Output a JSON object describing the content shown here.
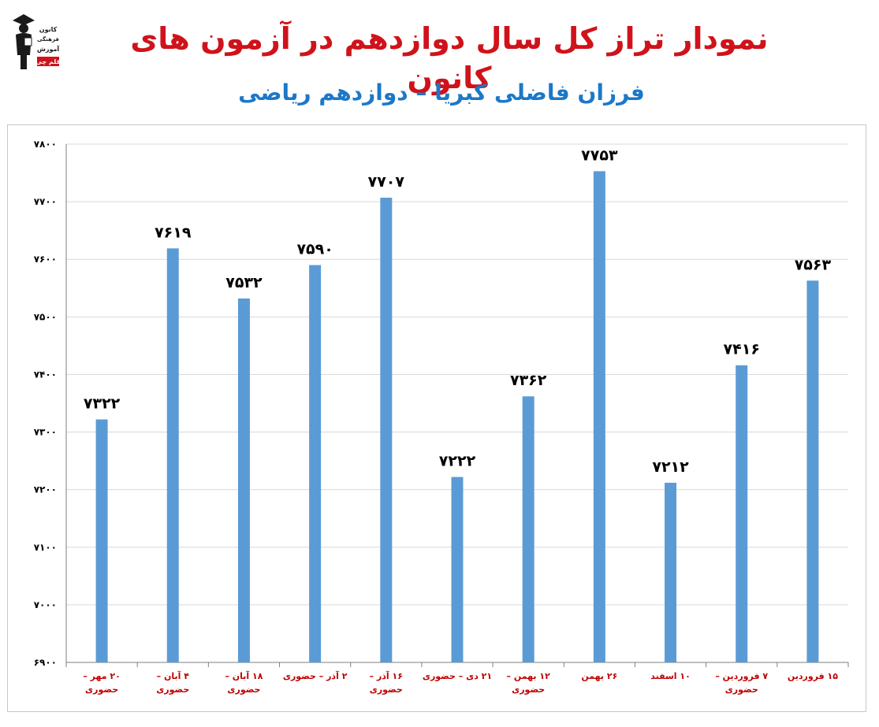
{
  "page": {
    "title": "نمودار تراز کل سال دوازدهم در آزمون های کانون",
    "subtitle": "فرزان فاضلی کبریا – دوازدهم ریاضی"
  },
  "logo": {
    "lines": [
      "کانون",
      "فرهنگی",
      "آموزش",
      "قلم چی"
    ],
    "colors": {
      "dark": "#1a1a1a",
      "red": "#d0121b"
    }
  },
  "colors": {
    "bar": "#5b9bd5",
    "grid": "#d9d9d9",
    "axis": "#7f7f7f",
    "title": "#d0121b",
    "subtitle": "#1c78c8",
    "category_label": "#c00000",
    "value_label": "#000000"
  },
  "chart_data": {
    "type": "bar",
    "categories": [
      "۲۰ مهر – حضوری",
      "۴ آبان – حضوری",
      "۱۸ آبان – حضوری",
      "۲ آذر – حضوری",
      "۱۶ آذر – حضوری",
      "۲۱ دی – حضوری",
      "۱۲ بهمن – حضوری",
      "۲۶ بهمن",
      "۱۰ اسفند",
      "۷ فروردین – حضوری",
      "۱۵ فروردین"
    ],
    "values": [
      7322,
      7619,
      7532,
      7590,
      7707,
      7222,
      7362,
      7753,
      7212,
      7416,
      7563
    ],
    "value_labels": [
      "۷۳۲۲",
      "۷۶۱۹",
      "۷۵۳۲",
      "۷۵۹۰",
      "۷۷۰۷",
      "۷۲۲۲",
      "۷۳۶۲",
      "۷۷۵۳",
      "۷۲۱۲",
      "۷۴۱۶",
      "۷۵۶۳"
    ],
    "ylim": [
      6900,
      7800
    ],
    "yticks": [
      6900,
      7000,
      7100,
      7200,
      7300,
      7400,
      7500,
      7600,
      7700,
      7800
    ],
    "ytick_labels": [
      "۶۹۰۰",
      "۷۰۰۰",
      "۷۱۰۰",
      "۷۲۰۰",
      "۷۳۰۰",
      "۷۴۰۰",
      "۷۵۰۰",
      "۷۶۰۰",
      "۷۷۰۰",
      "۷۸۰۰"
    ],
    "grid": true,
    "xlabel": "",
    "ylabel": ""
  }
}
